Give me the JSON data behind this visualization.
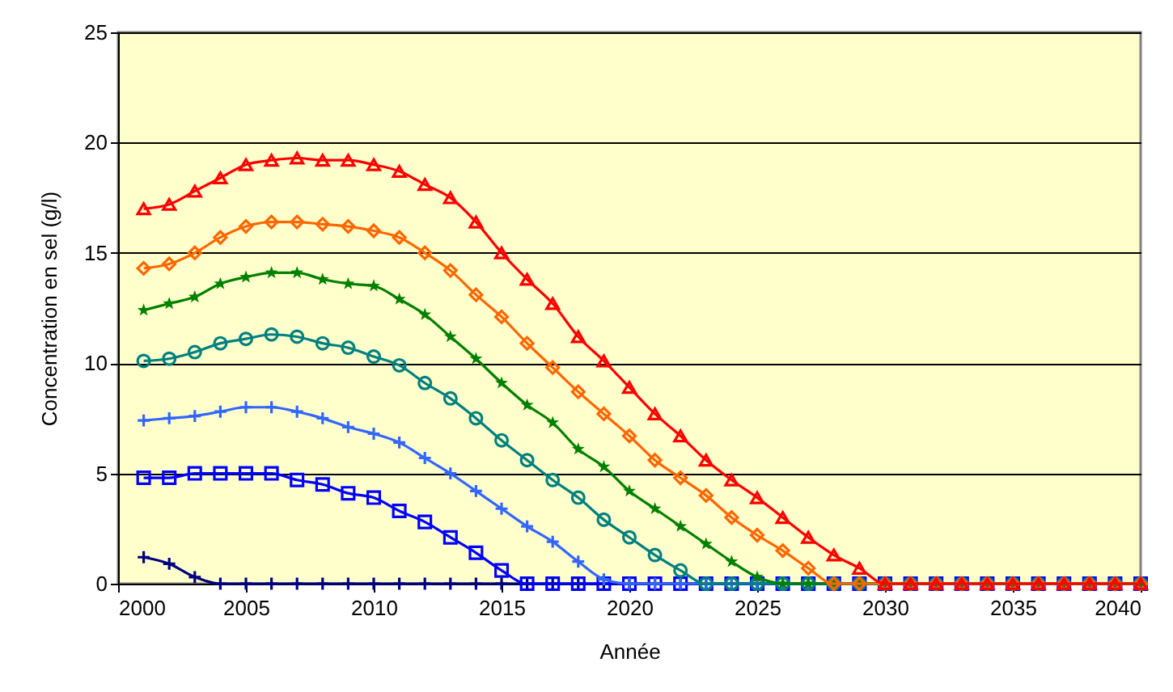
{
  "chart_data": {
    "type": "line",
    "xlabel": "Année",
    "ylabel": "Concentration en sel (g/l)",
    "x": [
      2001,
      2002,
      2003,
      2004,
      2005,
      2006,
      2007,
      2008,
      2009,
      2010,
      2011,
      2012,
      2013,
      2014,
      2015,
      2016,
      2017,
      2018,
      2019,
      2020,
      2021,
      2022,
      2023,
      2024,
      2025,
      2026,
      2027,
      2028,
      2029,
      2030,
      2031,
      2032,
      2033,
      2034,
      2035,
      2036,
      2037,
      2038,
      2039,
      2040
    ],
    "series": [
      {
        "color": "#ff0000",
        "marker": "triangle",
        "values": [
          17.0,
          17.2,
          17.8,
          18.4,
          19.0,
          19.2,
          19.3,
          19.2,
          19.2,
          19.0,
          18.7,
          18.1,
          17.5,
          16.4,
          15.0,
          13.8,
          12.7,
          11.2,
          10.1,
          8.9,
          7.7,
          6.7,
          5.6,
          4.7,
          3.9,
          3.0,
          2.1,
          1.3,
          0.7,
          0,
          0,
          0,
          0,
          0,
          0,
          0,
          0,
          0,
          0,
          0
        ]
      },
      {
        "color": "#ff6600",
        "marker": "diamond",
        "values": [
          14.3,
          14.5,
          15.0,
          15.7,
          16.2,
          16.4,
          16.4,
          16.3,
          16.2,
          16.0,
          15.7,
          15.0,
          14.2,
          13.1,
          12.1,
          10.9,
          9.8,
          8.7,
          7.7,
          6.7,
          5.6,
          4.8,
          4.0,
          3.0,
          2.2,
          1.5,
          0.7,
          0,
          0,
          0,
          0,
          0,
          0,
          0,
          0,
          0,
          0,
          0,
          0,
          0
        ]
      },
      {
        "color": "#008000",
        "marker": "star",
        "values": [
          12.4,
          12.7,
          13.0,
          13.6,
          13.9,
          14.1,
          14.1,
          13.8,
          13.6,
          13.5,
          12.9,
          12.2,
          11.2,
          10.2,
          9.1,
          8.1,
          7.3,
          6.1,
          5.3,
          4.2,
          3.4,
          2.6,
          1.8,
          1.0,
          0.3,
          0,
          0,
          0,
          0,
          0,
          0,
          0,
          0,
          0,
          0,
          0,
          0,
          0,
          0,
          0
        ]
      },
      {
        "color": "#008080",
        "marker": "circle",
        "values": [
          10.1,
          10.2,
          10.5,
          10.9,
          11.1,
          11.3,
          11.2,
          10.9,
          10.7,
          10.3,
          9.9,
          9.1,
          8.4,
          7.5,
          6.5,
          5.6,
          4.7,
          3.9,
          2.9,
          2.1,
          1.3,
          0.6,
          0,
          0,
          0,
          0,
          0,
          0,
          0,
          0,
          0,
          0,
          0,
          0,
          0,
          0,
          0,
          0,
          0,
          0
        ]
      },
      {
        "color": "#3366ff",
        "marker": "cross",
        "values": [
          7.4,
          7.5,
          7.6,
          7.8,
          8.0,
          8.0,
          7.8,
          7.5,
          7.1,
          6.8,
          6.4,
          5.7,
          5.0,
          4.2,
          3.4,
          2.6,
          1.9,
          1.0,
          0.2,
          0,
          0,
          0,
          0,
          0,
          0,
          0,
          0,
          0,
          0,
          0,
          0,
          0,
          0,
          0,
          0,
          0,
          0,
          0,
          0,
          0
        ]
      },
      {
        "color": "#0000ff",
        "marker": "square",
        "values": [
          4.8,
          4.8,
          5.0,
          5.0,
          5.0,
          5.0,
          4.7,
          4.5,
          4.1,
          3.9,
          3.3,
          2.8,
          2.1,
          1.4,
          0.6,
          0,
          0,
          0,
          0,
          0,
          0,
          0,
          0,
          0,
          0,
          0,
          0,
          0,
          0,
          0,
          0,
          0,
          0,
          0,
          0,
          0,
          0,
          0,
          0,
          0
        ]
      },
      {
        "color": "#000080",
        "marker": "cross",
        "values": [
          1.2,
          0.9,
          0.3,
          0,
          0,
          0,
          0,
          0,
          0,
          0,
          0,
          0,
          0,
          0,
          0,
          0,
          0,
          0,
          0,
          0,
          0,
          0,
          0,
          0,
          0,
          0,
          0,
          0,
          0,
          0,
          0,
          0,
          0,
          0,
          0,
          0,
          0,
          0,
          0,
          0
        ]
      }
    ],
    "xlim": [
      2000,
      2040
    ],
    "xticks": [
      2000,
      2005,
      2010,
      2015,
      2020,
      2025,
      2030,
      2035,
      2040
    ],
    "ylim": [
      0,
      25
    ],
    "yticks": [
      0,
      5,
      10,
      15,
      20,
      25
    ],
    "grid": "y",
    "line_style": "solid"
  }
}
